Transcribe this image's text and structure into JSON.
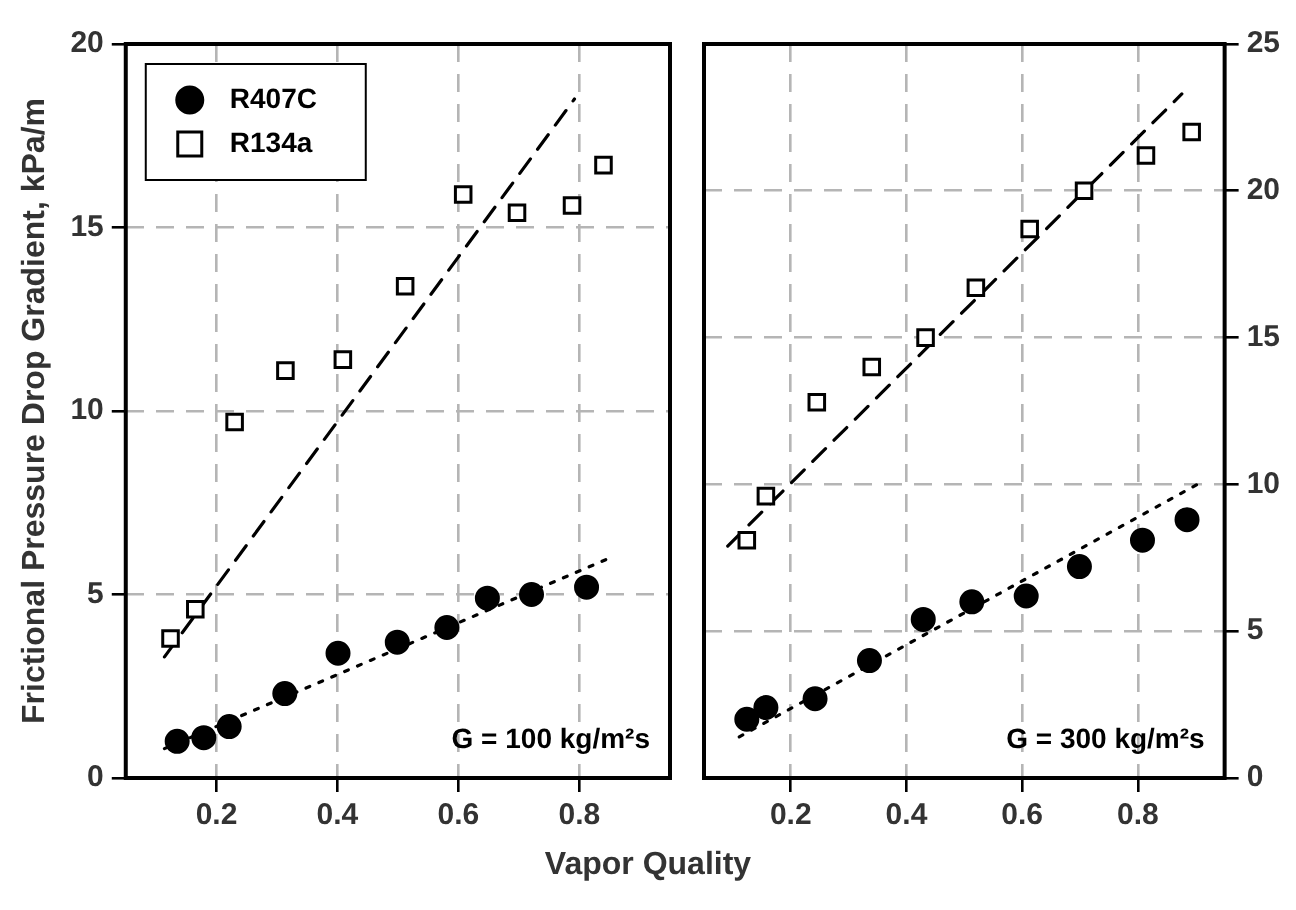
{
  "chart_data": [
    {
      "type": "scatter",
      "ylabel": "Frictional Pressure Drop Gradient, kPa/m",
      "xlabel": "Vapor Quality",
      "xlim": [
        0.05,
        0.95
      ],
      "xticks": [
        0.2,
        0.4,
        0.6,
        0.8
      ],
      "ylim": [
        0,
        20
      ],
      "yticks": [
        0,
        5,
        10,
        15,
        20
      ],
      "grid": true,
      "legend": "top left",
      "annotations": [
        "G = 100 kg/m²s"
      ],
      "series": [
        {
          "name": "R407C",
          "color": "#000000",
          "marker": "circle",
          "x": [
            0.135,
            0.179,
            0.221,
            0.313,
            0.401,
            0.499,
            0.581,
            0.648,
            0.721,
            0.812
          ],
          "values": [
            1.0,
            1.1,
            1.4,
            2.3,
            3.4,
            3.7,
            4.1,
            4.9,
            5.0,
            5.2
          ]
        },
        {
          "name": "R134a",
          "color": "#000000",
          "marker": "square",
          "x": [
            0.124,
            0.165,
            0.23,
            0.314,
            0.409,
            0.512,
            0.608,
            0.697,
            0.788,
            0.84
          ],
          "values": [
            3.8,
            4.6,
            9.7,
            11.1,
            11.4,
            13.4,
            15.9,
            15.4,
            15.6,
            16.7
          ]
        },
        {
          "type": "line",
          "color": "#000000",
          "marker": "none",
          "line_style": "dashed",
          "x": [
            0.114,
            0.792
          ],
          "values": [
            3.3,
            18.5
          ]
        },
        {
          "type": "line",
          "color": "#000000",
          "marker": "none",
          "line_style": "dotted",
          "x": [
            0.114,
            0.851
          ],
          "values": [
            0.8,
            6.0
          ]
        }
      ]
    },
    {
      "type": "scatter",
      "xlim": [
        0.05,
        0.95
      ],
      "xticks": [
        0.2,
        0.4,
        0.6,
        0.8
      ],
      "y2lim": [
        0,
        25
      ],
      "y2ticks": [
        0,
        5,
        10,
        15,
        20,
        25
      ],
      "grid": true,
      "annotations": [
        "G = 300 kg/m²s"
      ],
      "series": [
        {
          "color": "#000000",
          "marker": "circle",
          "axis": "y2",
          "x": [
            0.124,
            0.157,
            0.242,
            0.336,
            0.429,
            0.513,
            0.607,
            0.699,
            0.808,
            0.885
          ],
          "values": [
            2.0,
            2.4,
            2.7,
            4.0,
            5.4,
            6.0,
            6.2,
            7.2,
            8.1,
            8.8
          ]
        },
        {
          "color": "#000000",
          "marker": "square",
          "axis": "y2",
          "x": [
            0.124,
            0.157,
            0.245,
            0.34,
            0.433,
            0.52,
            0.613,
            0.707,
            0.814,
            0.893
          ],
          "values": [
            8.1,
            9.6,
            12.8,
            14.0,
            15.0,
            16.7,
            18.7,
            20.0,
            21.2,
            22.0
          ]
        },
        {
          "type": "line",
          "color": "#000000",
          "marker": "none",
          "line_style": "dashed",
          "axis": "y2",
          "x": [
            0.091,
            0.876
          ],
          "values": [
            7.9,
            23.3
          ]
        },
        {
          "type": "line",
          "color": "#000000",
          "marker": "none",
          "line_style": "dotted",
          "axis": "y2",
          "x": [
            0.111,
            0.912
          ],
          "values": [
            1.4,
            10.1
          ]
        }
      ]
    }
  ]
}
